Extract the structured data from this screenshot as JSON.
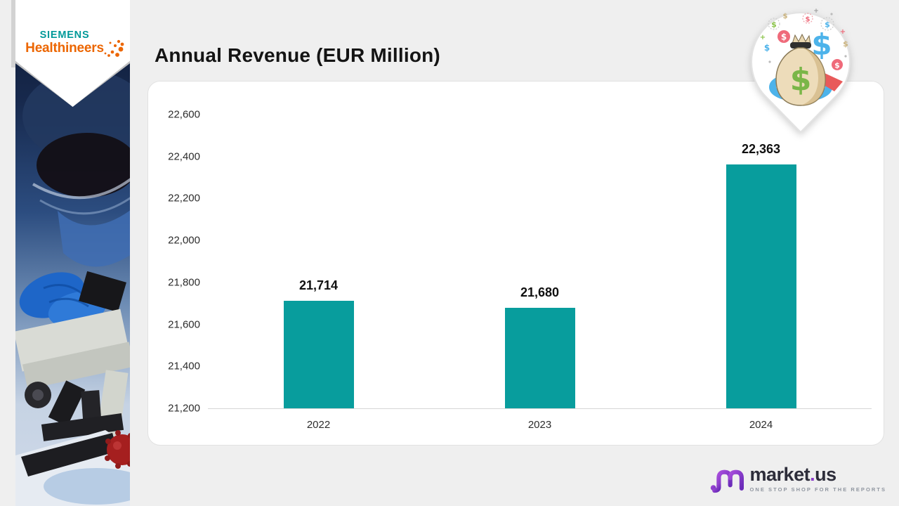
{
  "header": {
    "title": "Annual Revenue (EUR Million)"
  },
  "sidebar": {
    "brand_line1": "SIEMENS",
    "brand_line2": "Healthineers",
    "siemens_teal": "#009999",
    "healthineers_orange": "#ec6602"
  },
  "icons": {
    "money_bag_pin": "money-bag-map-pin",
    "dollar": "$",
    "plus": "+"
  },
  "chart_data": {
    "type": "bar",
    "title": "Annual Revenue (EUR Million)",
    "categories": [
      "2022",
      "2023",
      "2024"
    ],
    "values": [
      21714,
      21680,
      22363
    ],
    "value_labels": [
      "21,714",
      "21,680",
      "22,363"
    ],
    "ylim": [
      21200,
      22600
    ],
    "y_tick_step": 200,
    "y_ticks": [
      {
        "v": 21200,
        "label": "21,200"
      },
      {
        "v": 21400,
        "label": "21,400"
      },
      {
        "v": 21600,
        "label": "21,600"
      },
      {
        "v": 21800,
        "label": "21,800"
      },
      {
        "v": 22000,
        "label": "22,000"
      },
      {
        "v": 22200,
        "label": "22,200"
      },
      {
        "v": 22400,
        "label": "22,400"
      },
      {
        "v": 22600,
        "label": "22,600"
      }
    ],
    "bar_color": "#089d9d",
    "grid": false,
    "legend": null,
    "xlabel": "",
    "ylabel": ""
  },
  "footer": {
    "brand_prefix": "market",
    "brand_dot": ".",
    "brand_suffix": "us",
    "tagline": "ONE STOP SHOP FOR THE REPORTS"
  }
}
